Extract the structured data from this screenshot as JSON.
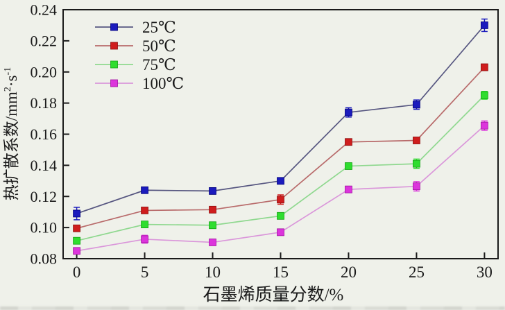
{
  "chart_data": {
    "type": "line",
    "title": "",
    "xlabel": "石墨烯质量分数/%",
    "ylabel": {
      "base1": "热扩散系数/mm",
      "sup1": "2",
      "base2": "·s",
      "sup2": "-1"
    },
    "ylabel_flat": "热扩散系数/mm2·s-1",
    "x": [
      0,
      5,
      10,
      15,
      20,
      25,
      30
    ],
    "x_tick_labels": [
      "0",
      "5",
      "10",
      "15",
      "20",
      "25",
      "30"
    ],
    "y_tick_labels": [
      "0.08",
      "0.10",
      "0.12",
      "0.14",
      "0.16",
      "0.18",
      "0.20",
      "0.22",
      "0.24"
    ],
    "xlim": [
      -1,
      31
    ],
    "ylim": [
      0.08,
      0.24
    ],
    "grid": false,
    "legend_position": "top-left",
    "axis_color": "#1a1a1a",
    "marker_shape": "square",
    "series": [
      {
        "name": "25℃",
        "marker_color": "#1b1bbd",
        "edge_color": "#00007a",
        "line_color": "#565680",
        "values": [
          0.109,
          0.124,
          0.1235,
          0.13,
          0.174,
          0.179,
          0.23
        ],
        "errors": [
          0.004,
          0.0015,
          0.0015,
          0.002,
          0.003,
          0.003,
          0.004
        ]
      },
      {
        "name": "50℃",
        "marker_color": "#cf1d1d",
        "edge_color": "#8c0f0f",
        "line_color": "#b86a6a",
        "values": [
          0.0995,
          0.111,
          0.1115,
          0.118,
          0.155,
          0.156,
          0.203
        ],
        "errors": [
          0.0015,
          0.0015,
          0.0015,
          0.003,
          0.0015,
          0.002,
          0.002
        ]
      },
      {
        "name": "75℃",
        "marker_color": "#2fdd2f",
        "edge_color": "#0fa00f",
        "line_color": "#8fd88f",
        "values": [
          0.0915,
          0.102,
          0.1015,
          0.1075,
          0.1395,
          0.141,
          0.185
        ],
        "errors": [
          0.0015,
          0.0015,
          0.0015,
          0.0015,
          0.0015,
          0.003,
          0.0025
        ]
      },
      {
        "name": "100℃",
        "marker_color": "#dc35dc",
        "edge_color": "#a012a0",
        "line_color": "#da96da",
        "values": [
          0.085,
          0.0925,
          0.0905,
          0.097,
          0.1245,
          0.1265,
          0.1655
        ],
        "errors": [
          0.002,
          0.0025,
          0.0015,
          0.0015,
          0.002,
          0.003,
          0.003
        ]
      }
    ]
  }
}
